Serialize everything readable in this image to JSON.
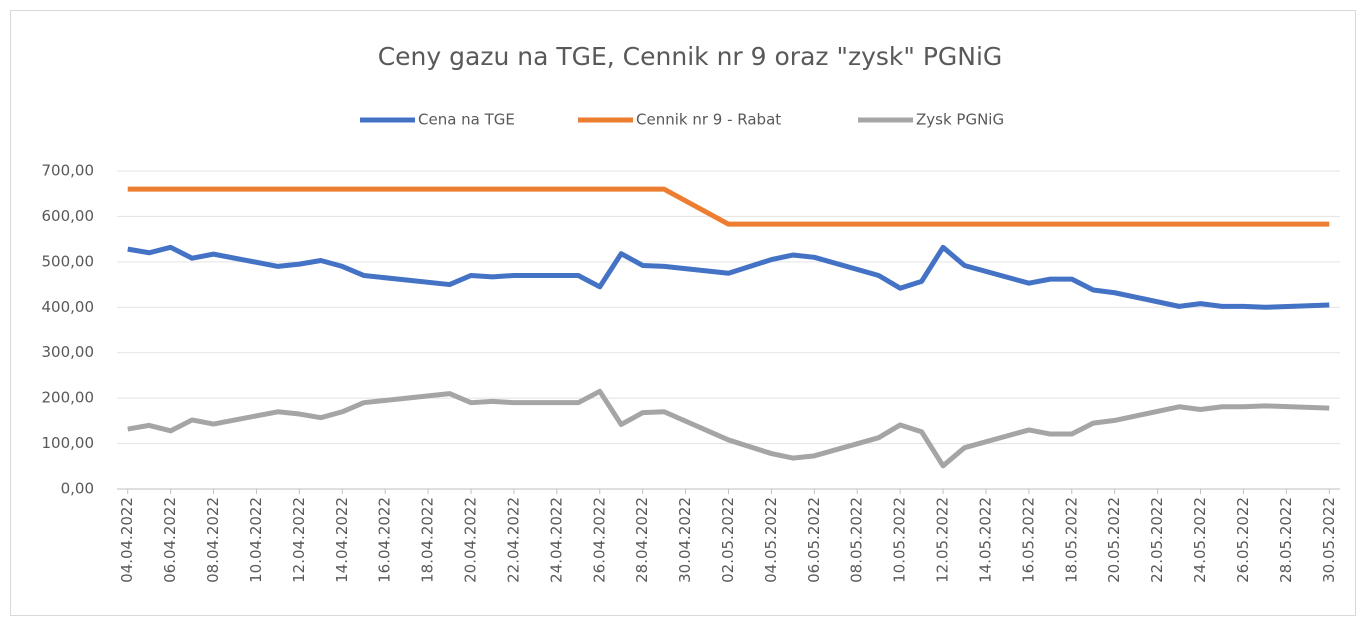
{
  "chart_data": {
    "type": "line",
    "title": "Ceny gazu na TGE, Cennik nr 9 oraz \"zysk\" PGNiG",
    "x": [
      "04.04.2022",
      "05.04.2022",
      "06.04.2022",
      "07.04.2022",
      "08.04.2022",
      "11.04.2022",
      "12.04.2022",
      "13.04.2022",
      "14.04.2022",
      "15.04.2022",
      "19.04.2022",
      "20.04.2022",
      "21.04.2022",
      "22.04.2022",
      "25.04.2022",
      "26.04.2022",
      "27.04.2022",
      "28.04.2022",
      "29.04.2022",
      "02.05.2022",
      "04.05.2022",
      "05.05.2022",
      "06.05.2022",
      "09.05.2022",
      "10.05.2022",
      "11.05.2022",
      "12.05.2022",
      "13.05.2022",
      "16.05.2022",
      "17.05.2022",
      "18.05.2022",
      "19.05.2022",
      "20.05.2022",
      "23.05.2022",
      "24.05.2022",
      "25.05.2022",
      "26.05.2022",
      "27.05.2022",
      "30.05.2022"
    ],
    "series": [
      {
        "name": "Cena na TGE",
        "color": "#4472c4",
        "values": [
          528,
          520,
          532,
          508,
          517,
          490,
          495,
          503,
          490,
          470,
          450,
          470,
          467,
          470,
          470,
          445,
          518,
          492,
          490,
          475,
          505,
          515,
          510,
          470,
          442,
          457,
          532,
          492,
          453,
          462,
          462,
          438,
          432,
          402,
          408,
          402,
          402,
          400,
          405
        ]
      },
      {
        "name": "Cennik nr 9 - Rabat",
        "color": "#ed7d31",
        "values": [
          660,
          660,
          660,
          660,
          660,
          660,
          660,
          660,
          660,
          660,
          660,
          660,
          660,
          660,
          660,
          660,
          660,
          660,
          660,
          583,
          583,
          583,
          583,
          583,
          583,
          583,
          583,
          583,
          583,
          583,
          583,
          583,
          583,
          583,
          583,
          583,
          583,
          583,
          583
        ]
      },
      {
        "name": "Zysk PGNiG",
        "color": "#a5a5a5",
        "values": [
          132,
          140,
          128,
          152,
          143,
          170,
          165,
          157,
          170,
          190,
          210,
          190,
          193,
          190,
          190,
          215,
          142,
          168,
          170,
          108,
          78,
          68,
          73,
          113,
          141,
          126,
          51,
          91,
          130,
          121,
          121,
          145,
          151,
          181,
          175,
          181,
          181,
          183,
          178
        ]
      }
    ],
    "xlim": [
      "04.04.2022",
      "30.05.2022"
    ],
    "xticks": [
      "04.04.2022",
      "06.04.2022",
      "08.04.2022",
      "10.04.2022",
      "12.04.2022",
      "14.04.2022",
      "16.04.2022",
      "18.04.2022",
      "20.04.2022",
      "22.04.2022",
      "24.04.2022",
      "26.04.2022",
      "28.04.2022",
      "30.04.2022",
      "02.05.2022",
      "04.05.2022",
      "06.05.2022",
      "08.05.2022",
      "10.05.2022",
      "12.05.2022",
      "14.05.2022",
      "16.05.2022",
      "18.05.2022",
      "20.05.2022",
      "22.05.2022",
      "24.05.2022",
      "26.05.2022",
      "28.05.2022",
      "30.05.2022"
    ],
    "ylim": [
      0,
      700
    ],
    "yticks": [
      {
        "value": 0,
        "label": "0,00"
      },
      {
        "value": 100,
        "label": "100,00"
      },
      {
        "value": 200,
        "label": "200,00"
      },
      {
        "value": 300,
        "label": "300,00"
      },
      {
        "value": 400,
        "label": "400,00"
      },
      {
        "value": 500,
        "label": "500,00"
      },
      {
        "value": 600,
        "label": "600,00"
      },
      {
        "value": 700,
        "label": "700,00"
      }
    ],
    "grid": true,
    "legend": "top"
  }
}
